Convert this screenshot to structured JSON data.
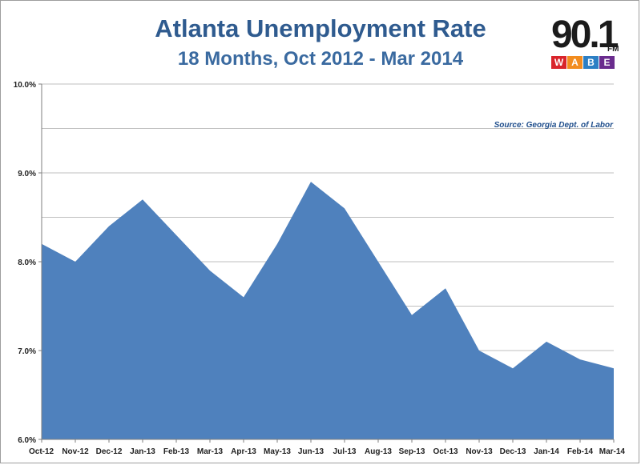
{
  "header": {
    "title": "Atlanta Unemployment Rate",
    "subtitle": "18 Months, Oct 2012 - Mar 2014"
  },
  "logo": {
    "number": "90.1",
    "fm": "FM",
    "letters": [
      {
        "char": "W",
        "color": "#d9242b"
      },
      {
        "char": "A",
        "color": "#f28c1e"
      },
      {
        "char": "B",
        "color": "#2c7fc4"
      },
      {
        "char": "E",
        "color": "#6a2c8e"
      }
    ]
  },
  "source_note": "Source: Georgia Dept. of Labor",
  "chart_data": {
    "type": "area",
    "title": "Atlanta Unemployment Rate",
    "subtitle": "18 Months, Oct 2012 - Mar 2014",
    "categories": [
      "Oct-12",
      "Nov-12",
      "Dec-12",
      "Jan-13",
      "Feb-13",
      "Mar-13",
      "Apr-13",
      "May-13",
      "Jun-13",
      "Jul-13",
      "Aug-13",
      "Sep-13",
      "Oct-13",
      "Nov-13",
      "Dec-13",
      "Jan-14",
      "Feb-14",
      "Mar-14"
    ],
    "values": [
      8.2,
      8.0,
      8.4,
      8.7,
      8.3,
      7.9,
      7.6,
      8.2,
      8.9,
      8.6,
      8.0,
      7.4,
      7.7,
      7.0,
      6.8,
      7.1,
      6.9,
      6.8
    ],
    "ylim": [
      6.0,
      10.0
    ],
    "y_ticks": [
      6.0,
      7.0,
      8.0,
      9.0,
      10.0
    ],
    "y_tick_labels": [
      "6.0%",
      "7.0%",
      "8.0%",
      "9.0%",
      "10.0%"
    ],
    "grid": true,
    "fill_color": "#4f81bd",
    "annotation": "Source: Georgia Dept. of Labor"
  }
}
